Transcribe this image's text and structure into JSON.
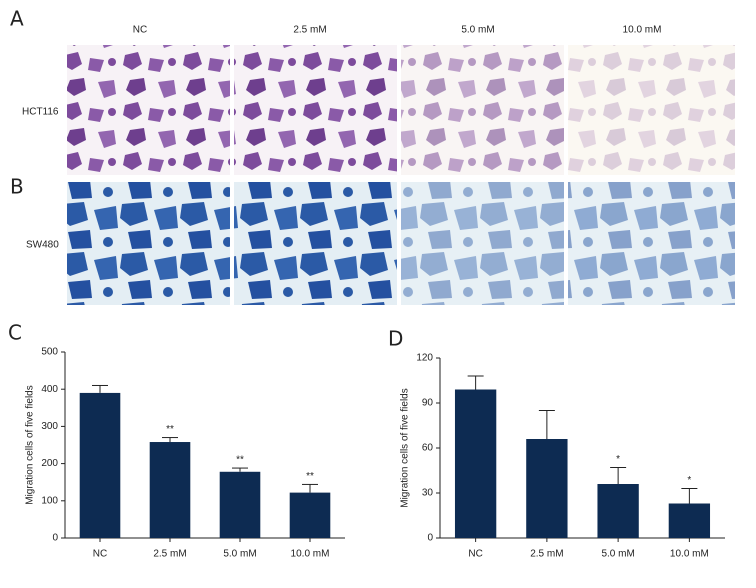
{
  "panels": {
    "labels": [
      "A",
      "B"
    ],
    "columns": [
      "NC",
      "2.5 mM",
      "5.0 mM",
      "10.0 mM"
    ],
    "rows": [
      "HCT116",
      "SW480"
    ]
  },
  "chart_data": [
    {
      "type": "bar",
      "panel_label": "C",
      "ylabel": "Migration cells of five fields",
      "categories": [
        "NC",
        "2.5 mM",
        "5.0 mM",
        "10.0 mM"
      ],
      "values": [
        390,
        258,
        178,
        122
      ],
      "errors": [
        20,
        12,
        10,
        22
      ],
      "annotations": [
        null,
        "**",
        "**",
        "**"
      ],
      "color": "#0d2b52",
      "ylim": [
        0,
        500
      ],
      "yticks": [
        0,
        100,
        200,
        300,
        400,
        500
      ]
    },
    {
      "type": "bar",
      "panel_label": "D",
      "ylabel": "Migration cells of five fields",
      "categories": [
        "NC",
        "2.5 mM",
        "5.0 mM",
        "10.0 mM"
      ],
      "values": [
        99,
        66,
        36,
        23
      ],
      "errors": [
        9,
        19,
        11,
        10
      ],
      "annotations": [
        null,
        null,
        "*",
        "*"
      ],
      "color": "#0d2b52",
      "ylim": [
        0,
        120
      ],
      "yticks": [
        0,
        30,
        60,
        90,
        120
      ]
    }
  ]
}
